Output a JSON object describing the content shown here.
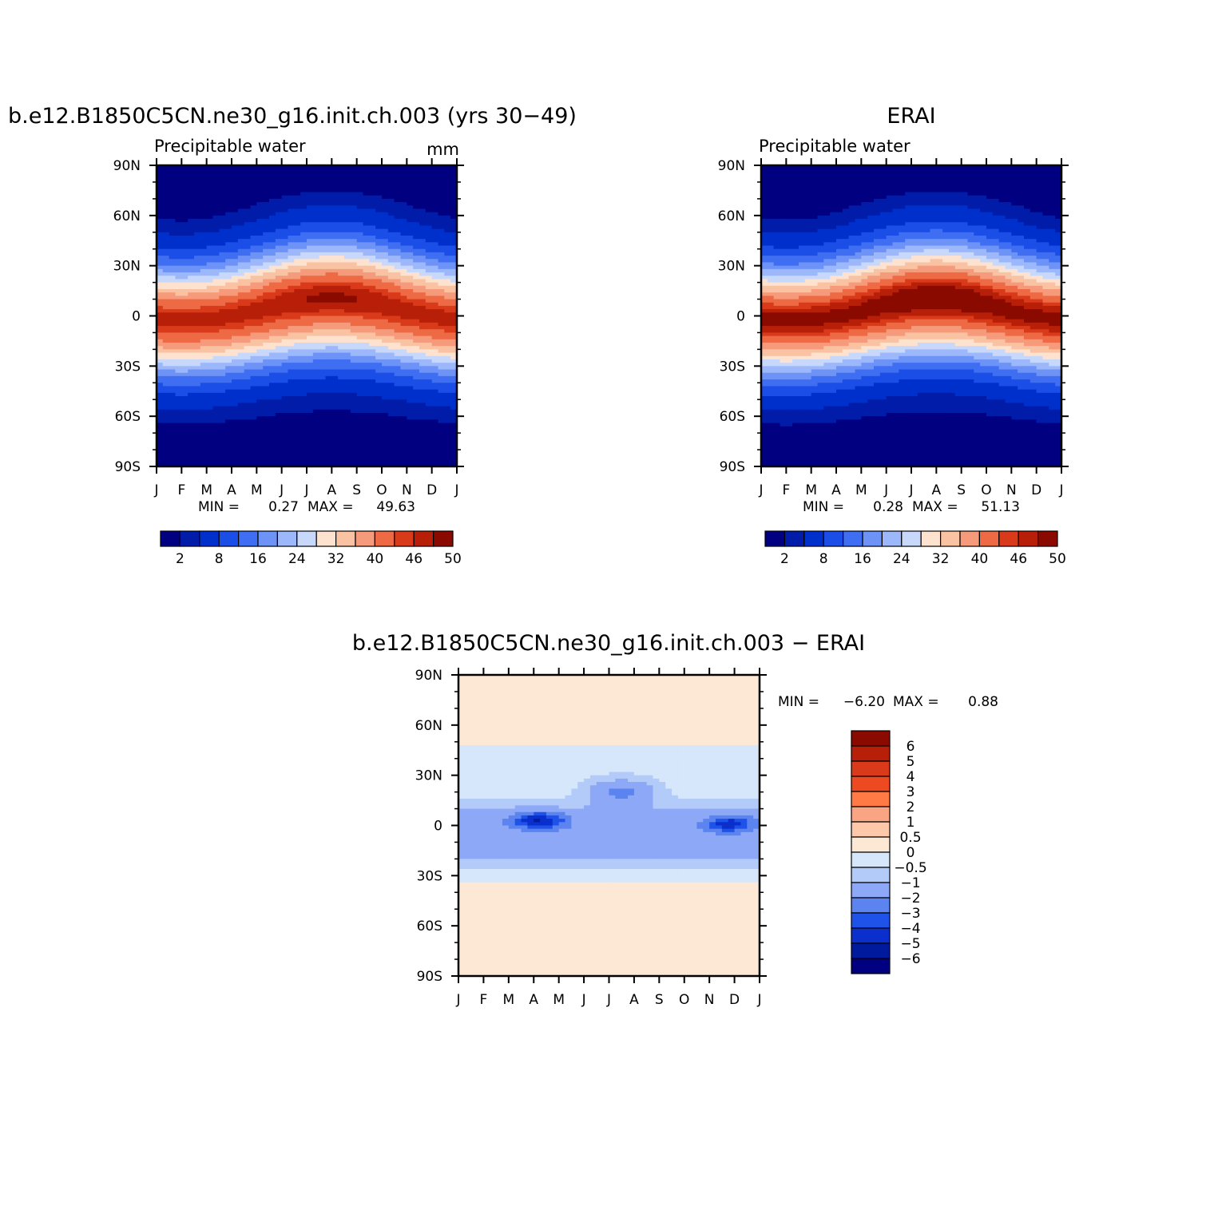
{
  "panels": [
    {
      "id": "model",
      "title": "b.e12.B1850C5CN.ne30_g16.init.ch.003 (yrs 30−49)",
      "subtitle": "Precipitable water",
      "units": "mm",
      "stats": {
        "min_label": "MIN =",
        "min": "0.27",
        "max_label": "MAX =",
        "max": "49.63"
      }
    },
    {
      "id": "erai",
      "title": "ERAI",
      "subtitle": "Precipitable water",
      "units": "",
      "stats": {
        "min_label": "MIN =",
        "min": "0.28",
        "max_label": "MAX =",
        "max": "51.13"
      }
    },
    {
      "id": "diff",
      "title": "b.e12.B1850C5CN.ne30_g16.init.ch.003 − ERAI",
      "subtitle": "",
      "units": "",
      "stats": {
        "min_label": "MIN =",
        "min": "−6.20",
        "max_label": "MAX =",
        "max": "0.88"
      }
    }
  ],
  "chart_data": [
    {
      "type": "heatmap",
      "panel": "model",
      "title": "b.e12.B1850C5CN.ne30_g16.init.ch.003 (yrs 30−49)",
      "ylabel": "",
      "xlabel": "",
      "x_ticks": [
        "J",
        "F",
        "M",
        "A",
        "M",
        "J",
        "J",
        "A",
        "S",
        "O",
        "N",
        "D",
        "J"
      ],
      "y_ticks": [
        "90N",
        "60N",
        "30N",
        "0",
        "30S",
        "60S",
        "90S"
      ],
      "ylim": [
        -90,
        90
      ],
      "colorbar_labels": [
        "2",
        "8",
        "16",
        "24",
        "32",
        "40",
        "46",
        "50"
      ],
      "colors": [
        "#000080",
        "#001ca8",
        "#0030cc",
        "#1a4ee6",
        "#3f6ef2",
        "#6e93f7",
        "#9db8fa",
        "#c8d8fb",
        "#fde3cf",
        "#f9c3a3",
        "#f59a7a",
        "#ed6a45",
        "#d93a1a",
        "#b81f08",
        "#8a0a00"
      ],
      "params": {
        "min": 0.27,
        "max": 49.63,
        "itcz_base": 48.5,
        "seasonal_amp": 6,
        "seasonal_shift": 3
      }
    },
    {
      "type": "heatmap",
      "panel": "erai",
      "title": "ERAI",
      "x_ticks": [
        "J",
        "F",
        "M",
        "A",
        "M",
        "J",
        "J",
        "A",
        "S",
        "O",
        "N",
        "D",
        "J"
      ],
      "y_ticks": [
        "90N",
        "60N",
        "30N",
        "0",
        "30S",
        "60S",
        "90S"
      ],
      "ylim": [
        -90,
        90
      ],
      "colorbar_labels": [
        "2",
        "8",
        "16",
        "24",
        "32",
        "40",
        "46",
        "50"
      ],
      "colors": [
        "#000080",
        "#001ca8",
        "#0030cc",
        "#1a4ee6",
        "#3f6ef2",
        "#6e93f7",
        "#9db8fa",
        "#c8d8fb",
        "#fde3cf",
        "#f9c3a3",
        "#f59a7a",
        "#ed6a45",
        "#d93a1a",
        "#b81f08",
        "#8a0a00"
      ],
      "params": {
        "min": 0.28,
        "max": 51.13,
        "itcz_base": 50.5,
        "seasonal_amp": 6,
        "seasonal_shift": 3
      }
    },
    {
      "type": "heatmap",
      "panel": "diff",
      "title": "b.e12.B1850C5CN.ne30_g16.init.ch.003 − ERAI",
      "x_ticks": [
        "J",
        "F",
        "M",
        "A",
        "M",
        "J",
        "J",
        "A",
        "S",
        "O",
        "N",
        "D",
        "J"
      ],
      "y_ticks": [
        "90N",
        "60N",
        "30N",
        "0",
        "30S",
        "60S",
        "90S"
      ],
      "ylim": [
        -90,
        90
      ],
      "colorbar_labels": [
        "6",
        "5",
        "4",
        "3",
        "2",
        "1",
        "0.5",
        "0",
        "−0.5",
        "−1",
        "−2",
        "−3",
        "−4",
        "−5",
        "−6"
      ],
      "colors": [
        "#8a0a00",
        "#b81f08",
        "#d93a1a",
        "#ed4a22",
        "#ff7a45",
        "#f9a583",
        "#fcc8a9",
        "#fde8d6",
        "#d6e6fb",
        "#b3cbf9",
        "#8ca8f7",
        "#5b84f0",
        "#1f52e8",
        "#0b2fcc",
        "#001a9e",
        "#000080"
      ],
      "params": {
        "min": -6.2,
        "max": 0.88
      }
    }
  ]
}
